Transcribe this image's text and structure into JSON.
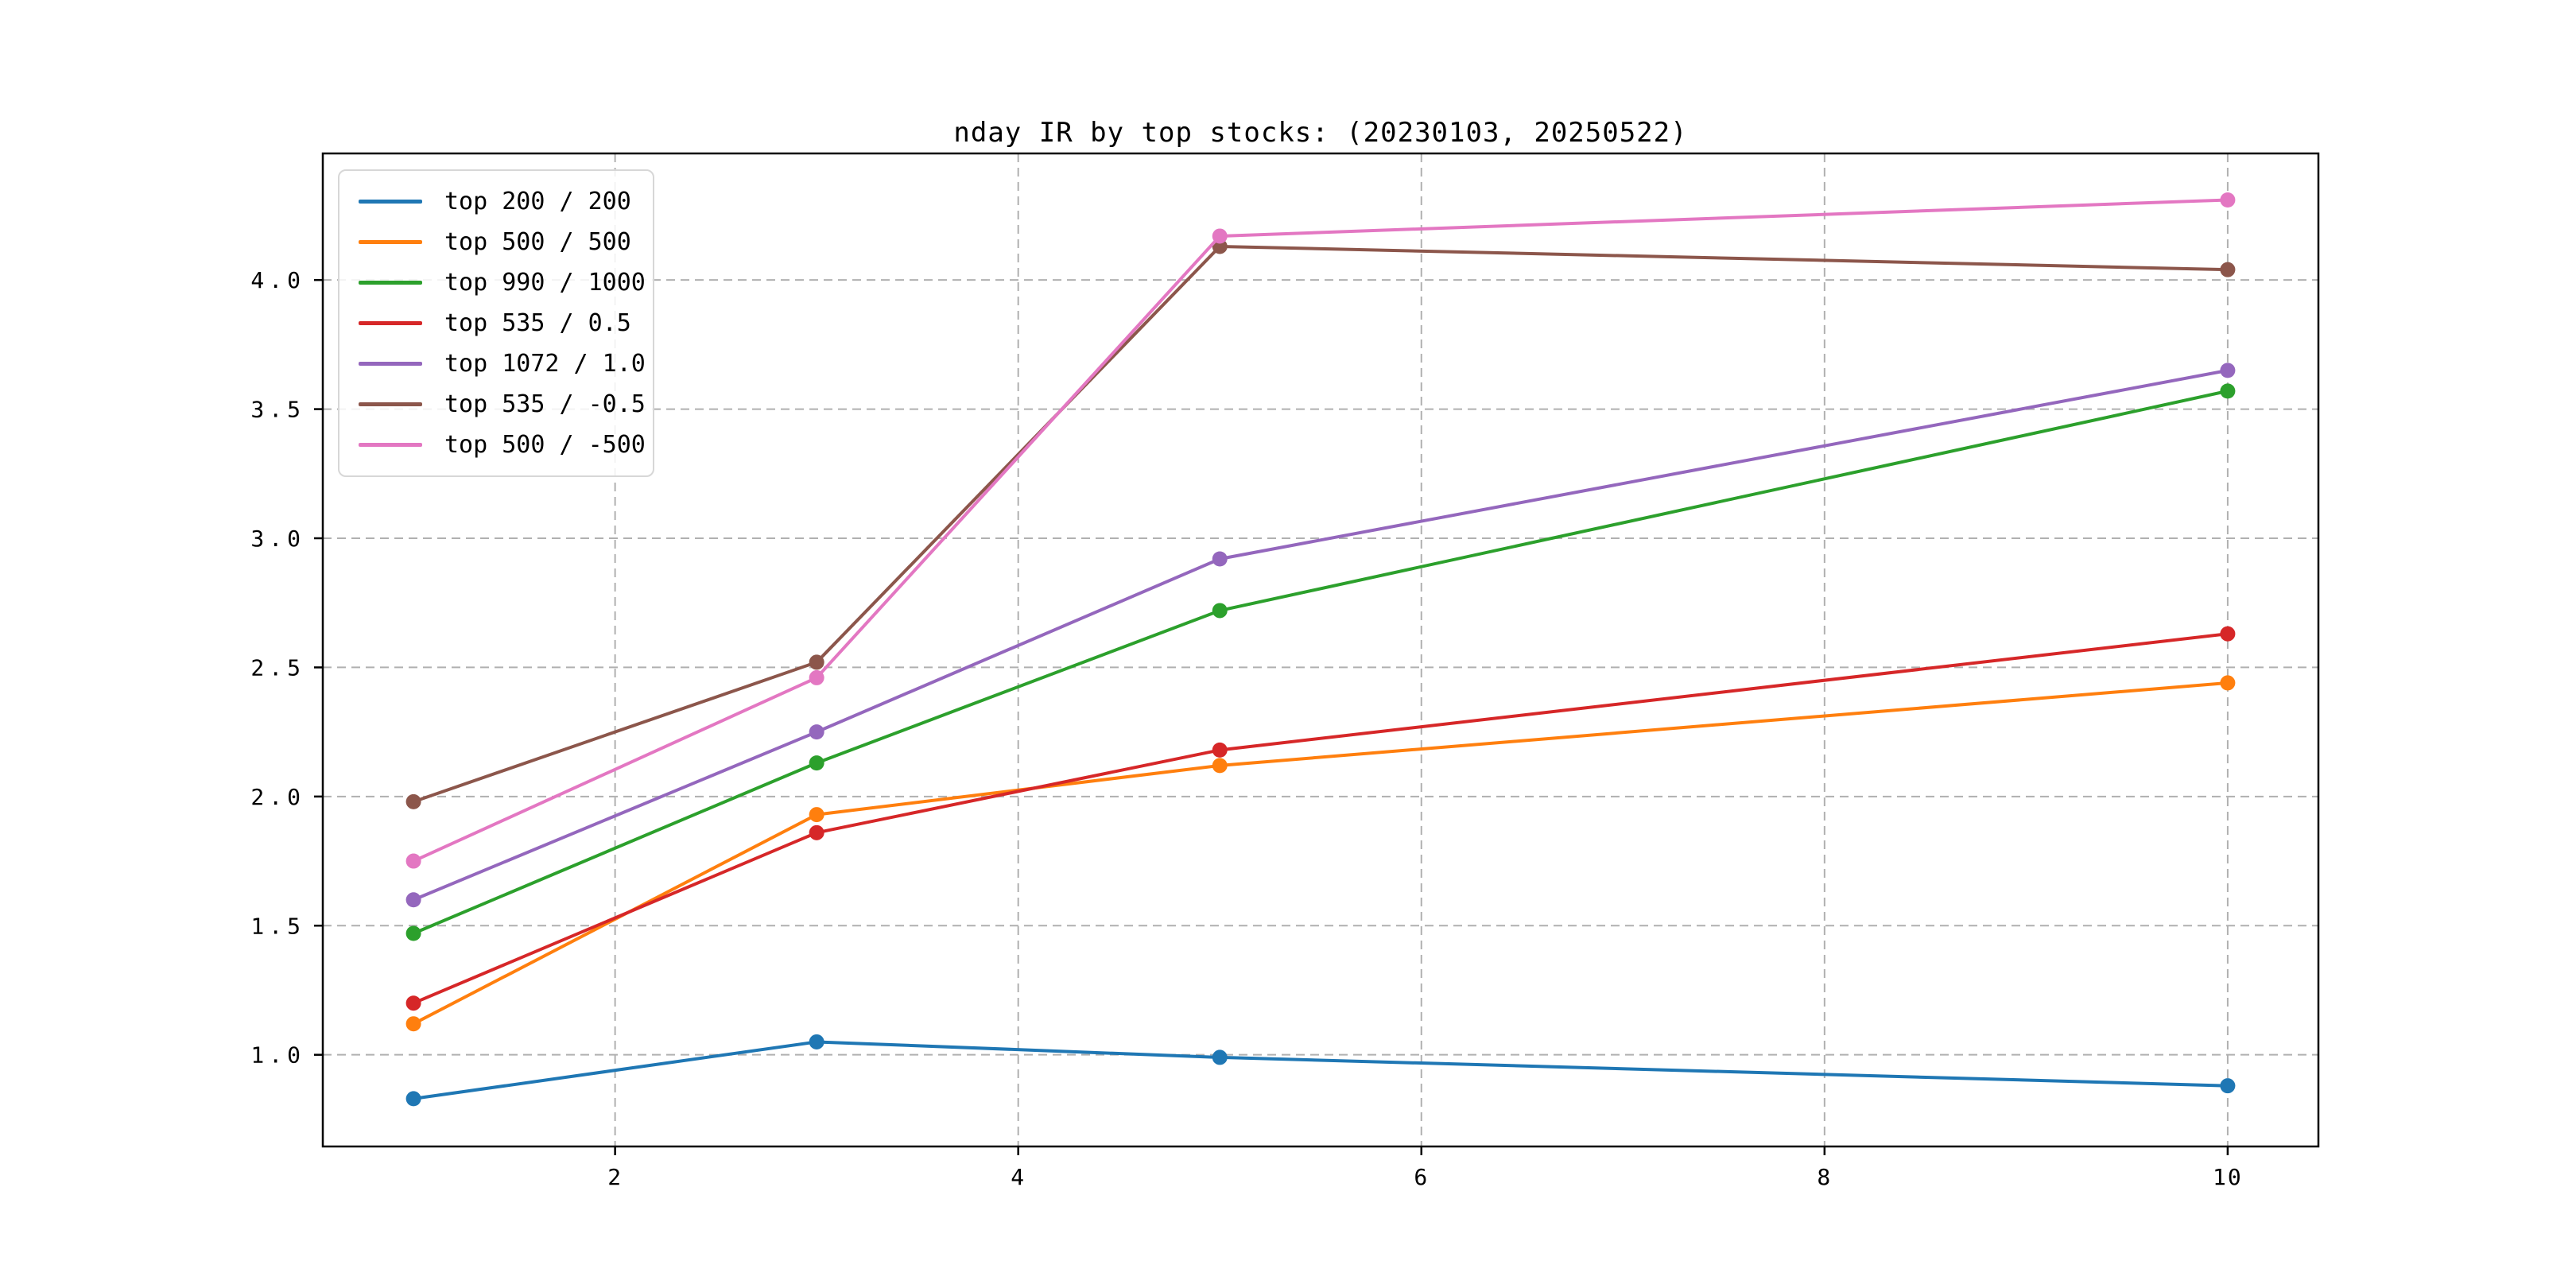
{
  "title": "nday IR by top stocks: (20230103, 20250522)",
  "chart_data": {
    "type": "line",
    "title": "nday IR by top stocks: (20230103, 20250522)",
    "xlabel": "",
    "ylabel": "",
    "x": [
      1,
      3,
      5,
      10
    ],
    "series": [
      {
        "name": "top 200 / 200",
        "color": "#1f77b4",
        "values": [
          0.83,
          1.05,
          0.99,
          0.88
        ]
      },
      {
        "name": "top 500 / 500",
        "color": "#ff7f0e",
        "values": [
          1.12,
          1.93,
          2.12,
          2.44
        ]
      },
      {
        "name": "top 990 / 1000",
        "color": "#2ca02c",
        "values": [
          1.47,
          2.13,
          2.72,
          3.57
        ]
      },
      {
        "name": "top 535 / 0.5",
        "color": "#d62728",
        "values": [
          1.2,
          1.86,
          2.18,
          2.63
        ]
      },
      {
        "name": "top 1072 / 1.0",
        "color": "#9467bd",
        "values": [
          1.6,
          2.25,
          2.92,
          3.65
        ]
      },
      {
        "name": "top 535 / -0.5",
        "color": "#8c564b",
        "values": [
          1.98,
          2.52,
          4.13,
          4.04
        ]
      },
      {
        "name": "top 500 / -500",
        "color": "#e377c2",
        "values": [
          1.75,
          2.46,
          4.17,
          4.31
        ]
      }
    ],
    "xticks": [
      2,
      4,
      6,
      8,
      10
    ],
    "yticks": [
      1.0,
      1.5,
      2.0,
      2.5,
      3.0,
      3.5,
      4.0
    ],
    "xlim": [
      0.55,
      10.45
    ],
    "ylim": [
      0.645,
      4.49
    ],
    "grid": true,
    "grid_color": "#b0b0b0",
    "spine_color": "#000000",
    "legend_position": "upper left",
    "marker": "o"
  }
}
